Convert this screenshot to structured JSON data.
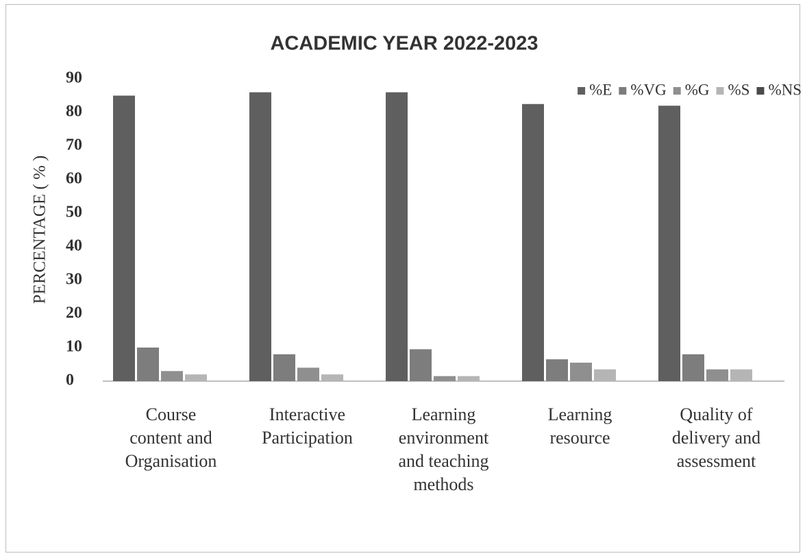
{
  "chart_data": {
    "type": "bar",
    "title": "ACADEMIC YEAR  2022-2023",
    "y_label": "PERCENTAGE ( % )",
    "categories": [
      "Course\ncontent and\nOrganisation",
      "Interactive\nParticipation",
      "Learning\nenvironment\nand teaching\nmethods",
      "Learning\nresource",
      "Quality of\ndelivery and\nassessment"
    ],
    "series": [
      {
        "name": "%E",
        "color": "#5f5f5f",
        "values": [
          85,
          86,
          86,
          82.5,
          82
        ]
      },
      {
        "name": "%VG",
        "color": "#7d7d7d",
        "values": [
          10,
          8,
          9.5,
          6.5,
          8
        ]
      },
      {
        "name": "%G",
        "color": "#8f8f8f",
        "values": [
          3,
          4,
          1.5,
          5.5,
          3.5
        ]
      },
      {
        "name": "%S",
        "color": "#b5b5b5",
        "values": [
          2,
          2,
          1.5,
          3.5,
          3.5
        ]
      },
      {
        "name": "%NS",
        "color": "#4a4a4a",
        "values": [
          0,
          0,
          0,
          0,
          0
        ]
      }
    ],
    "ylim": [
      0,
      90
    ],
    "yticks": [
      0,
      10,
      20,
      30,
      40,
      50,
      60,
      70,
      80,
      90
    ],
    "legend": "top-right"
  }
}
